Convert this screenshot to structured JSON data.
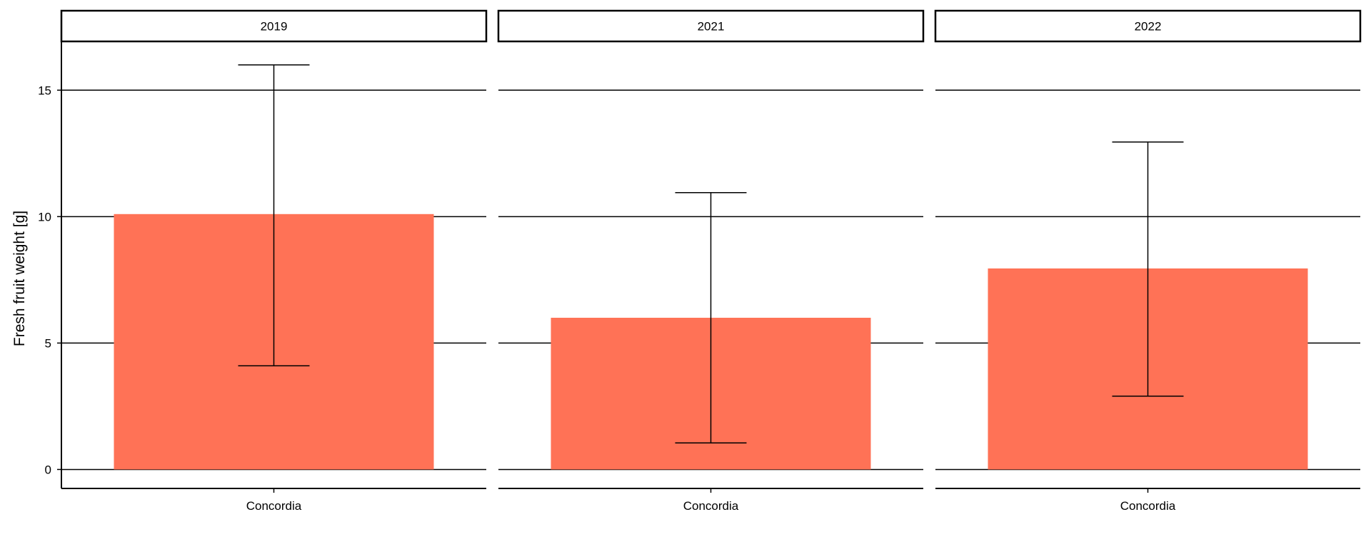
{
  "chart_data": {
    "type": "bar",
    "ylabel": "Fresh fruit weight [g]",
    "xlabel": "",
    "ylim": [
      -0.75,
      16.9
    ],
    "y_ticks": [
      0,
      5,
      10,
      15
    ],
    "y_tick_labels": [
      "0",
      "5",
      "10",
      "15"
    ],
    "grid": "horizontal major gridlines",
    "bar_color": "#FF7256",
    "facets": [
      {
        "label": "2019",
        "categories": [
          "Concordia"
        ],
        "values": [
          10.1
        ],
        "error_low": [
          4.1
        ],
        "error_high": [
          16.0
        ]
      },
      {
        "label": "2021",
        "categories": [
          "Concordia"
        ],
        "values": [
          6.0
        ],
        "error_low": [
          1.05
        ],
        "error_high": [
          10.95
        ]
      },
      {
        "label": "2022",
        "categories": [
          "Concordia"
        ],
        "values": [
          7.95
        ],
        "error_low": [
          2.9
        ],
        "error_high": [
          12.95
        ]
      }
    ]
  }
}
